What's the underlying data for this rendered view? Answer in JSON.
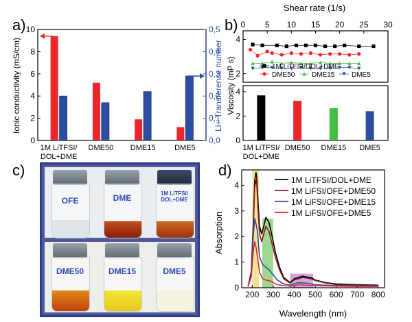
{
  "colors": {
    "red": "#e8262b",
    "blue": "#2b4ea3",
    "black": "#000000",
    "green": "#3fbf3f",
    "brown": "#8b1a1a",
    "dme": "#1f5fd0"
  },
  "panel_a": {
    "label": "a)",
    "ylabel_left": "Ionic conductivity (mS/cm)",
    "ylabel_right": "Li+ Transference number",
    "left_ticks": [
      "0",
      "2",
      "4",
      "6",
      "8",
      "10"
    ],
    "right_ticks": [
      "0,0",
      "0,1",
      "0,2",
      "0,3",
      "0,4",
      "0,5"
    ],
    "x_labels": [
      "1M LiTFSI/\nDOL+DME",
      "DME50",
      "DME15",
      "DME5"
    ]
  },
  "panel_b": {
    "label": "b)",
    "top_xlabel": "Shear rate (1/s)",
    "top_ticks": [
      "0",
      "5",
      "10",
      "15",
      "20",
      "25",
      "30"
    ],
    "ylabel": "Viscosity (mP s)",
    "upper_ticks": [
      "2",
      "4"
    ],
    "lower_ticks": [
      "0",
      "2",
      "4"
    ],
    "legend": [
      "1M LiTFSI/DOL+DME",
      "DME50",
      "DME15",
      "DME5"
    ],
    "x_labels": [
      "1M LiTFSI/\nDOL+DME",
      "DME50",
      "DME15",
      "DME5"
    ]
  },
  "panel_c": {
    "label": "c)",
    "vials": [
      "OFE",
      "DME",
      "1M LiTFSI/\nDOL+DME",
      "DME50",
      "DME15",
      "DME5"
    ]
  },
  "panel_d": {
    "label": "d)",
    "xlabel": "Wavelength (nm)",
    "ylabel": "Absorption",
    "x_ticks": [
      "200",
      "300",
      "400",
      "500",
      "600",
      "700",
      "800"
    ],
    "y_ticks": [
      "0",
      "1",
      "2",
      "3",
      "4"
    ],
    "legend": [
      "1M LiTFSI/DOL+DME",
      "1M LiFSI/OFE+DME50",
      "1M LiFSI/OFE+DME15",
      "1M LiFSI/OFE+DME5"
    ]
  },
  "chart_data": [
    {
      "type": "bar",
      "categories": [
        "1M LiTFSI/DOL+DME",
        "DME50",
        "DME15",
        "DME5"
      ],
      "series": [
        {
          "name": "Ionic conductivity",
          "axis": "left",
          "color": "#e8262b",
          "values": [
            9.4,
            5.2,
            1.9,
            1.2
          ]
        },
        {
          "name": "Li+ Transference number",
          "axis": "right",
          "color": "#2b4ea3",
          "values": [
            0.2,
            0.17,
            0.22,
            0.29
          ]
        }
      ],
      "ylim_left": [
        0,
        10
      ],
      "ylim_right": [
        0,
        0.5
      ]
    },
    {
      "type": "scatter",
      "xlim": [
        0,
        30
      ],
      "ylim": [
        1.5,
        4.5
      ],
      "series": [
        {
          "name": "1M LiTFSI/DOL+DME",
          "color": "#000000",
          "marker": "square",
          "x": [
            2,
            4,
            7,
            9,
            11,
            13,
            15,
            17,
            19,
            21,
            24,
            27
          ],
          "y": [
            3.7,
            3.65,
            3.65,
            3.6,
            3.65,
            3.65,
            3.65,
            3.6,
            3.6,
            3.65,
            3.6,
            3.6
          ]
        },
        {
          "name": "DME50",
          "color": "#e8262b",
          "marker": "circle",
          "x": [
            1.5,
            3,
            5,
            6,
            8,
            10,
            12,
            14,
            16,
            18,
            20,
            22,
            24
          ],
          "y": [
            3.4,
            3.05,
            3.3,
            3.2,
            3.1,
            3.2,
            3.15,
            3.2,
            3.1,
            3.15,
            3.15,
            3.1,
            3.15
          ]
        },
        {
          "name": "DME15",
          "color": "#3fbf3f",
          "marker": "triangle-up",
          "x": [
            2,
            4,
            6,
            8,
            10,
            12,
            14,
            16,
            18,
            20,
            22,
            24
          ],
          "y": [
            2.6,
            2.6,
            2.7,
            2.6,
            2.65,
            2.6,
            2.6,
            2.65,
            2.6,
            2.6,
            2.6,
            2.6
          ]
        },
        {
          "name": "DME5",
          "color": "#2b4ea3",
          "marker": "triangle-down",
          "x": [
            2,
            4,
            6,
            8,
            10,
            12,
            14,
            16,
            18,
            20,
            22,
            24
          ],
          "y": [
            2.3,
            2.35,
            2.35,
            2.3,
            2.3,
            2.35,
            2.3,
            2.3,
            2.3,
            2.35,
            2.35,
            2.3
          ]
        }
      ]
    },
    {
      "type": "bar",
      "categories": [
        "1M LiTFSI/DOL+DME",
        "DME50",
        "DME15",
        "DME5"
      ],
      "values": [
        3.7,
        3.25,
        2.65,
        2.4
      ],
      "colors": [
        "#000000",
        "#e8262b",
        "#3fbf3f",
        "#2b4ea3"
      ],
      "ylim": [
        0,
        4.5
      ]
    },
    {
      "type": "line",
      "xlim": [
        150,
        830
      ],
      "ylim": [
        0,
        4.6
      ],
      "highlights": [
        {
          "x": [
            200,
            232
          ],
          "color": "#f0e08a"
        },
        {
          "x": [
            248,
            300
          ],
          "color": "#8fd07f"
        },
        {
          "x": [
            380,
            490
          ],
          "color": "#c79ad8"
        }
      ],
      "series": [
        {
          "name": "1M LiTFSI/DOL+DME",
          "color": "#000000",
          "x": [
            180,
            195,
            205,
            212,
            218,
            222,
            228,
            235,
            245,
            255,
            265,
            280,
            295,
            310,
            330,
            350,
            380,
            400,
            420,
            440,
            460,
            480,
            500,
            550,
            600,
            700,
            800
          ],
          "y": [
            0.05,
            0.6,
            2.5,
            4.2,
            4.5,
            4.3,
            3.3,
            2.4,
            2.1,
            2.4,
            2.75,
            2.55,
            2.0,
            1.4,
            0.8,
            0.4,
            0.2,
            0.35,
            0.4,
            0.45,
            0.42,
            0.4,
            0.3,
            0.2,
            0.15,
            0.12,
            0.1
          ]
        },
        {
          "name": "1M LiFSI/OFE+DME50",
          "color": "#8b1a1a",
          "x": [
            180,
            195,
            205,
            212,
            218,
            222,
            228,
            235,
            245,
            255,
            265,
            280,
            295,
            310,
            330,
            350,
            380,
            400,
            420,
            440,
            460,
            480,
            500,
            550,
            600,
            700,
            800
          ],
          "y": [
            0.05,
            0.5,
            2.3,
            3.9,
            4.2,
            4.0,
            3.0,
            2.1,
            1.8,
            2.1,
            2.4,
            2.2,
            1.7,
            1.2,
            0.7,
            0.35,
            0.18,
            0.3,
            0.35,
            0.4,
            0.38,
            0.35,
            0.28,
            0.18,
            0.12,
            0.1,
            0.08
          ]
        },
        {
          "name": "1M LiFSI/OFE+DME15",
          "color": "#2b4ea3",
          "x": [
            180,
            195,
            205,
            212,
            218,
            225,
            235,
            250,
            265,
            280,
            300,
            320,
            350,
            380,
            420,
            460,
            500,
            600,
            700,
            800
          ],
          "y": [
            0.05,
            0.5,
            2.0,
            2.7,
            2.5,
            2.2,
            1.2,
            0.9,
            0.8,
            0.7,
            0.5,
            0.3,
            0.15,
            0.1,
            0.2,
            0.18,
            0.12,
            0.08,
            0.07,
            0.06
          ]
        },
        {
          "name": "1M LiFSI/OFE+DME5",
          "color": "#e8262b",
          "x": [
            180,
            195,
            205,
            212,
            218,
            225,
            235,
            250,
            265,
            280,
            300,
            320,
            350,
            380,
            420,
            460,
            500,
            600,
            700,
            800
          ],
          "y": [
            0.05,
            0.4,
            1.4,
            1.8,
            1.6,
            1.2,
            0.6,
            0.35,
            0.3,
            0.28,
            0.2,
            0.12,
            0.08,
            0.06,
            0.12,
            0.1,
            0.08,
            0.06,
            0.05,
            0.05
          ]
        }
      ]
    }
  ]
}
